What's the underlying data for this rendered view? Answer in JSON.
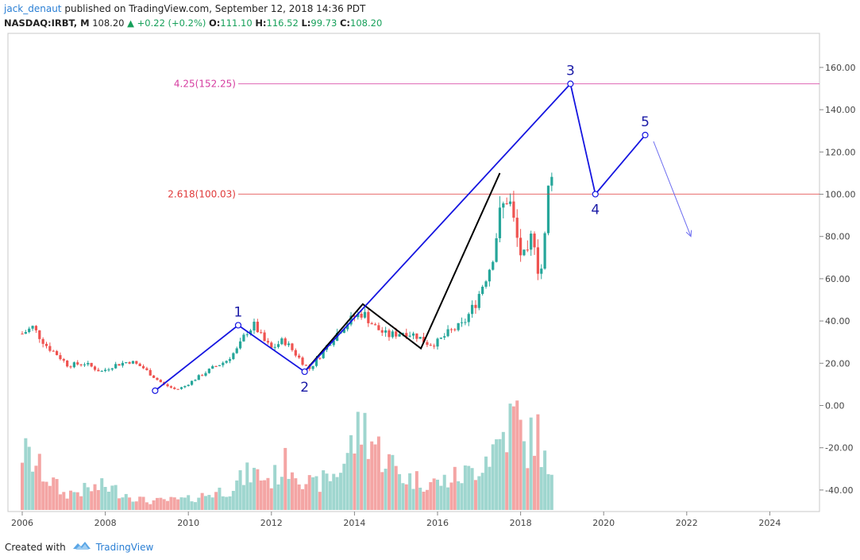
{
  "header": {
    "author": "jack_denaut",
    "published_text": "published on TradingView.com, September 12, 2018 14:36 PDT",
    "symbol": "NASDAQ:IRBT, M",
    "last": "108.20",
    "change": "+0.22 (+0.2%)",
    "open_label": "O:",
    "open": "111.10",
    "high_label": "H:",
    "high": "116.52",
    "low_label": "L:",
    "low": "99.73",
    "close_label": "C:",
    "close": "108.20"
  },
  "footer": {
    "created_with": "Created with",
    "brand": "TradingView"
  },
  "colors": {
    "up": "#26a69a",
    "down": "#ef5350",
    "vol_up": "#9fd6cf",
    "vol_down": "#f4a5a4",
    "fib_upper": "#d63ca0",
    "fib_lower": "#e03a3a",
    "wave": "#1515e0",
    "black_wave": "#000000",
    "arrow": "#6b6bf0"
  },
  "chart_data": {
    "type": "candlestick",
    "interval": "monthly",
    "x_range": [
      2005.9,
      2025.2
    ],
    "y_range": [
      -50,
      175
    ],
    "x_ticks": [
      "2006",
      "2008",
      "2010",
      "2012",
      "2014",
      "2016",
      "2018",
      "2020",
      "2022",
      "2024"
    ],
    "y_ticks": [
      "160.00",
      "140.00",
      "120.00",
      "100.00",
      "80.00",
      "60.00",
      "40.00",
      "20.00",
      "0.00",
      "-20.00",
      "-40.00"
    ],
    "price_path": [
      [
        2006.0,
        34
      ],
      [
        2006.25,
        37
      ],
      [
        2006.6,
        28
      ],
      [
        2006.85,
        24
      ],
      [
        2007.1,
        19
      ],
      [
        2007.5,
        20
      ],
      [
        2007.9,
        16
      ],
      [
        2008.2,
        19
      ],
      [
        2008.6,
        21
      ],
      [
        2008.9,
        18
      ],
      [
        2009.2,
        13
      ],
      [
        2009.4,
        10
      ],
      [
        2009.7,
        7.5
      ],
      [
        2009.9,
        9
      ],
      [
        2010.2,
        13
      ],
      [
        2010.6,
        18
      ],
      [
        2010.9,
        21
      ],
      [
        2011.2,
        27
      ],
      [
        2011.4,
        35
      ],
      [
        2011.6,
        38
      ],
      [
        2011.8,
        31
      ],
      [
        2012.0,
        27
      ],
      [
        2012.3,
        31
      ],
      [
        2012.6,
        24
      ],
      [
        2012.9,
        17
      ],
      [
        2013.1,
        22
      ],
      [
        2013.4,
        30
      ],
      [
        2013.7,
        37
      ],
      [
        2014.0,
        42
      ],
      [
        2014.2,
        44
      ],
      [
        2014.5,
        37
      ],
      [
        2014.8,
        33
      ],
      [
        2015.2,
        35
      ],
      [
        2015.5,
        33
      ],
      [
        2015.8,
        29
      ],
      [
        2016.0,
        30
      ],
      [
        2016.3,
        35
      ],
      [
        2016.6,
        38
      ],
      [
        2016.9,
        48
      ],
      [
        2017.1,
        58
      ],
      [
        2017.3,
        68
      ],
      [
        2017.5,
        90
      ],
      [
        2017.7,
        100
      ],
      [
        2017.9,
        80
      ],
      [
        2018.0,
        72
      ],
      [
        2018.15,
        68
      ],
      [
        2018.3,
        84
      ],
      [
        2018.45,
        60
      ],
      [
        2018.55,
        70
      ],
      [
        2018.65,
        98
      ],
      [
        2018.7,
        110
      ],
      [
        2018.75,
        108.2
      ]
    ],
    "volume_pattern": [
      [
        2006.0,
        0.55
      ],
      [
        2007.0,
        0.15
      ],
      [
        2008.0,
        0.22
      ],
      [
        2009.0,
        0.08
      ],
      [
        2010.0,
        0.1
      ],
      [
        2011.0,
        0.2
      ],
      [
        2011.5,
        0.35
      ],
      [
        2012.0,
        0.28
      ],
      [
        2012.4,
        0.45
      ],
      [
        2013.0,
        0.22
      ],
      [
        2013.6,
        0.35
      ],
      [
        2014.2,
        0.8
      ],
      [
        2014.6,
        0.55
      ],
      [
        2015.2,
        0.3
      ],
      [
        2016.0,
        0.25
      ],
      [
        2016.8,
        0.35
      ],
      [
        2017.4,
        0.6
      ],
      [
        2017.9,
        0.9
      ],
      [
        2018.1,
        0.55
      ],
      [
        2018.4,
        0.75
      ],
      [
        2018.7,
        0.25
      ]
    ],
    "fib_levels": [
      {
        "label": "4.25(152.25)",
        "value": 152.25,
        "color_key": "fib_upper"
      },
      {
        "label": "2.618(100.03)",
        "value": 100.03,
        "color_key": "fib_lower"
      }
    ],
    "elliott_wave": [
      {
        "label": "",
        "x": 2009.2,
        "y": 7
      },
      {
        "label": "1",
        "x": 2011.2,
        "y": 38
      },
      {
        "label": "2",
        "x": 2012.8,
        "y": 16
      },
      {
        "label": "3",
        "x": 2019.2,
        "y": 152.25
      },
      {
        "label": "4",
        "x": 2019.8,
        "y": 100.03
      },
      {
        "label": "5",
        "x": 2021.0,
        "y": 128
      }
    ],
    "black_path": [
      {
        "x": 2012.8,
        "y": 16
      },
      {
        "x": 2014.2,
        "y": 48
      },
      {
        "x": 2015.6,
        "y": 27
      },
      {
        "x": 2017.5,
        "y": 110
      }
    ],
    "forecast_arrow": {
      "from": [
        2021.2,
        125
      ],
      "to": [
        2022.1,
        80
      ]
    }
  }
}
